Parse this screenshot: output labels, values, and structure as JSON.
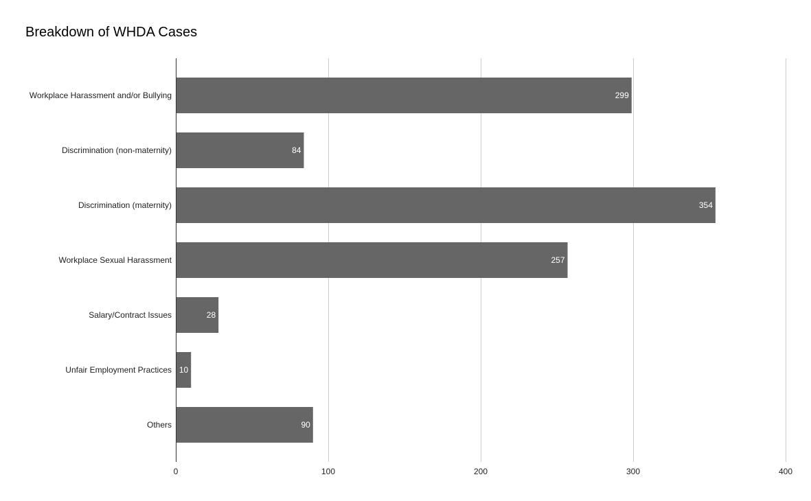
{
  "chart_data": {
    "type": "bar",
    "orientation": "horizontal",
    "title": "Breakdown of WHDA Cases",
    "xlabel": "",
    "ylabel": "",
    "categories": [
      "Workplace Harassment and/or Bullying",
      "Discrimination (non-maternity)",
      "Discrimination (maternity)",
      "Workplace Sexual Harassment",
      "Salary/Contract Issues",
      "Unfair Employment Practices",
      "Others"
    ],
    "values": [
      299,
      84,
      354,
      257,
      28,
      10,
      90
    ],
    "xlim": [
      0,
      400
    ],
    "xticks": [
      0,
      100,
      200,
      300,
      400
    ],
    "grid": true,
    "legend": "none",
    "data_labels": true,
    "bar_color": "#666666",
    "grid_color": "#cccccc",
    "axis_color": "#333333"
  }
}
